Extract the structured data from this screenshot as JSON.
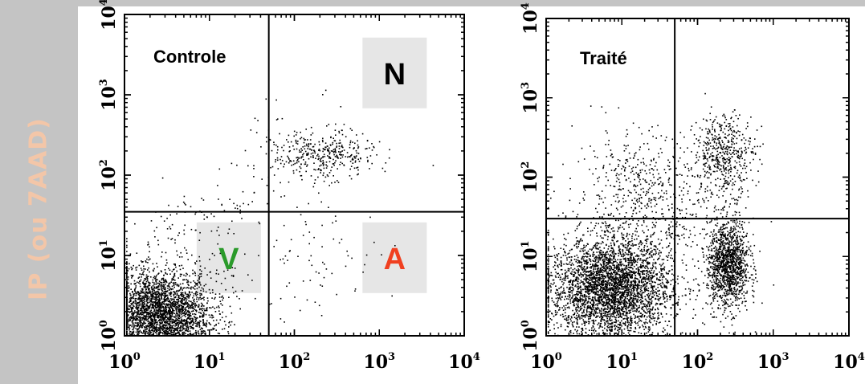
{
  "y_axis_title": "IP (ou 7AAD)",
  "colors": {
    "band": "#c4c4c4",
    "y_title": "#f3c6a8",
    "box": "#e6e6e6",
    "V": "#2a9a2a",
    "A": "#f04020",
    "N": "#000000"
  },
  "chart_data": [
    {
      "type": "scatter",
      "title": "Controle",
      "x_scale": "log",
      "y_scale": "log",
      "xlim": [
        1,
        10000
      ],
      "ylim": [
        1,
        10000
      ],
      "x_ticks": [
        "10^0",
        "10^1",
        "10^2",
        "10^3",
        "10^4"
      ],
      "y_ticks": [
        "10^0",
        "10^1",
        "10^2",
        "10^3",
        "10^4"
      ],
      "gate": {
        "x": 50,
        "y": 35
      },
      "quadrant_labels": [
        {
          "text": "N",
          "quadrant": "upper-right"
        },
        {
          "text": "V",
          "quadrant": "lower-left"
        },
        {
          "text": "A",
          "quadrant": "lower-right"
        }
      ],
      "clusters": [
        {
          "region": "lower-left",
          "center": [
            2.5,
            1.8
          ],
          "spread": [
            0.3,
            0.27
          ],
          "n": 3000
        },
        {
          "region": "lower-left",
          "center": [
            5,
            5
          ],
          "spread": [
            0.5,
            0.5
          ],
          "n": 260
        },
        {
          "region": "upper-right",
          "center": [
            220,
            180
          ],
          "spread": [
            0.3,
            0.14
          ],
          "n": 360
        },
        {
          "region": "upper-right",
          "center": [
            90,
            300
          ],
          "spread": [
            0.4,
            0.3
          ],
          "n": 35
        },
        {
          "region": "lower-right",
          "center": [
            220,
            10
          ],
          "spread": [
            0.35,
            0.35
          ],
          "n": 65
        },
        {
          "region": "diagonal",
          "center": [
            20,
            50
          ],
          "spread": [
            0.6,
            0.35
          ],
          "n": 70
        }
      ]
    },
    {
      "type": "scatter",
      "title": "Traité",
      "x_scale": "log",
      "y_scale": "log",
      "xlim": [
        1,
        10000
      ],
      "ylim": [
        1,
        10000
      ],
      "x_ticks": [
        "10^0",
        "10^1",
        "10^2",
        "10^3",
        "10^4"
      ],
      "y_ticks": [
        "10^0",
        "10^1",
        "10^2",
        "10^3",
        "10^4"
      ],
      "gate": {
        "x": 50,
        "y": 30
      },
      "clusters": [
        {
          "region": "lower-left",
          "center": [
            7,
            4
          ],
          "spread": [
            0.4,
            0.32
          ],
          "n": 3600
        },
        {
          "region": "lower-right",
          "center": [
            250,
            8
          ],
          "spread": [
            0.14,
            0.28
          ],
          "n": 1300
        },
        {
          "region": "upper-right",
          "center": [
            220,
            200
          ],
          "spread": [
            0.2,
            0.25
          ],
          "n": 500
        },
        {
          "region": "upper-left",
          "center": [
            15,
            80
          ],
          "spread": [
            0.4,
            0.35
          ],
          "n": 350
        },
        {
          "region": "middle",
          "center": [
            40,
            30
          ],
          "spread": [
            0.5,
            0.4
          ],
          "n": 300
        }
      ]
    }
  ]
}
